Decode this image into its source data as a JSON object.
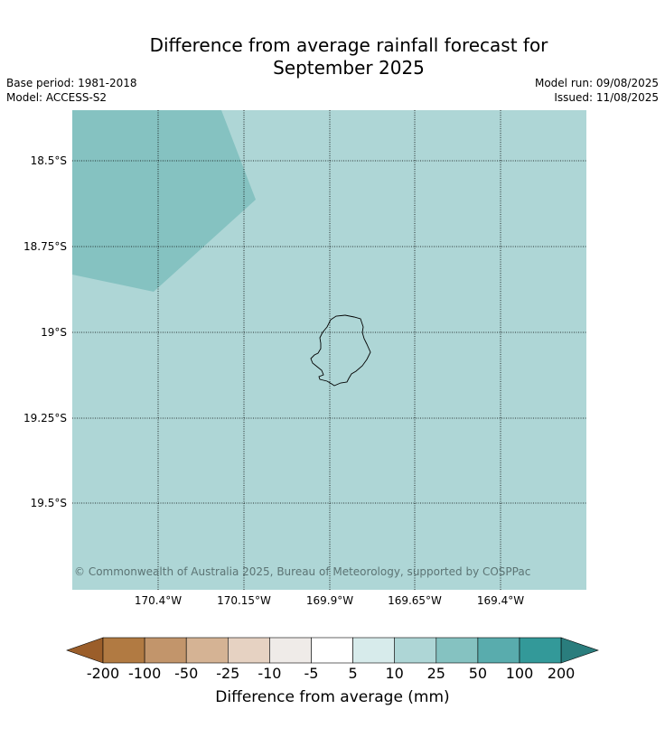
{
  "title_line1": "Difference from average rainfall forecast for",
  "title_line2": "September 2025",
  "base_period": "Base period: 1981-2018",
  "model": "Model: ACCESS-S2",
  "model_run": "Model run: 09/08/2025",
  "issued": "Issued: 11/08/2025",
  "copyright": "© Commonwealth of Australia 2025, Bureau of Meteorology, supported by COSPPac",
  "map": {
    "lat_labels": [
      "18.5°S",
      "18.75°S",
      "19°S",
      "19.25°S",
      "19.5°S"
    ],
    "lon_labels": [
      "170.4°W",
      "170.15°W",
      "169.9°W",
      "169.65°W",
      "169.4°W"
    ],
    "colors": {
      "background_class": "#aed6d6",
      "upper_left_class": "#85c2c1",
      "coastline": "#000000"
    }
  },
  "colorbar": {
    "label": "Difference from average (mm)",
    "ticks": [
      "-200",
      "-100",
      "-50",
      "-25",
      "-10",
      "-5",
      "5",
      "10",
      "25",
      "50",
      "100",
      "200"
    ],
    "colors": [
      "#9b5e2a",
      "#b17a42",
      "#c2956b",
      "#d5b394",
      "#e6d2c2",
      "#efebe8",
      "#ffffff",
      "#d7ebeb",
      "#aed6d6",
      "#85c2c1",
      "#59acad",
      "#339999",
      "#2a7d7d"
    ]
  }
}
